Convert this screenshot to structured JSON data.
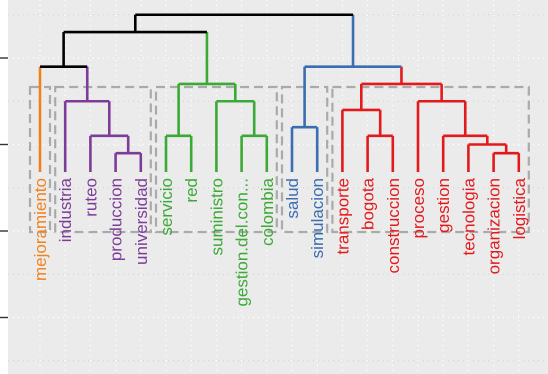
{
  "chart_data": {
    "type": "dendrogram",
    "title": "",
    "xlabel": "",
    "ylabel": "",
    "ylim": [
      0,
      4.8
    ],
    "grid": true,
    "y_ticks": [
      0,
      1,
      2,
      3,
      4
    ],
    "colors": {
      "root": "#000000",
      "orange": "#F0821E",
      "purple": "#7D3C98",
      "green": "#3BA935",
      "blue": "#3A6EB0",
      "red": "#E31A1C",
      "cluster_box": "#AAAAAA",
      "panel": "#EBEBEB",
      "grid": "#D0D0D0"
    },
    "leaves": [
      {
        "label": "mejoramiento",
        "color": "orange"
      },
      {
        "label": "industria",
        "color": "purple"
      },
      {
        "label": "ruteo",
        "color": "purple"
      },
      {
        "label": "produccion",
        "color": "purple"
      },
      {
        "label": "universidad",
        "color": "purple"
      },
      {
        "label": "servicio",
        "color": "green"
      },
      {
        "label": "red",
        "color": "green"
      },
      {
        "label": "suministro",
        "color": "green"
      },
      {
        "label": "gestion.del.con...",
        "color": "green"
      },
      {
        "label": "colombia",
        "color": "green"
      },
      {
        "label": "salud",
        "color": "blue"
      },
      {
        "label": "simulacion",
        "color": "blue"
      },
      {
        "label": "transporte",
        "color": "red"
      },
      {
        "label": "bogota",
        "color": "red"
      },
      {
        "label": "construccion",
        "color": "red"
      },
      {
        "label": "proceso",
        "color": "red"
      },
      {
        "label": "gestion",
        "color": "red"
      },
      {
        "label": "tecnologia",
        "color": "red"
      },
      {
        "label": "organizacion",
        "color": "red"
      },
      {
        "label": "logistica",
        "color": "red"
      }
    ],
    "merges": [
      {
        "a": "L3",
        "b": "L4",
        "height": 2.9,
        "color": "purple"
      },
      {
        "a": "L2",
        "b": "M0",
        "height": 3.1,
        "color": "purple"
      },
      {
        "a": "L1",
        "b": "M1",
        "height": 3.5,
        "color": "purple"
      },
      {
        "a": "L0",
        "b": "M2",
        "height": 3.9,
        "color": "black"
      },
      {
        "a": "L5",
        "b": "L6",
        "height": 3.1,
        "color": "green"
      },
      {
        "a": "L8",
        "b": "L9",
        "height": 3.1,
        "color": "green"
      },
      {
        "a": "L7",
        "b": "M5",
        "height": 3.5,
        "color": "green"
      },
      {
        "a": "M4",
        "b": "M6",
        "height": 3.7,
        "color": "green"
      },
      {
        "a": "M3",
        "b": "M7",
        "height": 4.3,
        "color": "black"
      },
      {
        "a": "L10",
        "b": "L11",
        "height": 3.2,
        "color": "blue"
      },
      {
        "a": "L13",
        "b": "L14",
        "height": 3.1,
        "color": "red"
      },
      {
        "a": "L12",
        "b": "M10",
        "height": 3.4,
        "color": "red"
      },
      {
        "a": "L18",
        "b": "L19",
        "height": 2.9,
        "color": "red"
      },
      {
        "a": "L17",
        "b": "M12",
        "height": 3.0,
        "color": "red"
      },
      {
        "a": "L16",
        "b": "M13",
        "height": 3.1,
        "color": "red"
      },
      {
        "a": "L15",
        "b": "M14",
        "height": 3.5,
        "color": "red"
      },
      {
        "a": "M11",
        "b": "M15",
        "height": 3.7,
        "color": "red"
      },
      {
        "a": "M9",
        "b": "M16",
        "height": 3.9,
        "color": "blue"
      },
      {
        "a": "M8",
        "b": "M17",
        "height": 4.5,
        "color": "black"
      }
    ],
    "cluster_boxes": [
      {
        "from": 0,
        "to": 0
      },
      {
        "from": 1,
        "to": 4
      },
      {
        "from": 5,
        "to": 9
      },
      {
        "from": 10,
        "to": 11
      },
      {
        "from": 12,
        "to": 19
      }
    ]
  }
}
